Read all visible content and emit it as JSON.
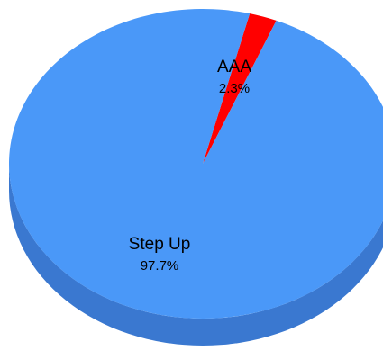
{
  "chart_data": {
    "type": "pie",
    "style": "3d",
    "slices": [
      {
        "label": "AAA",
        "value": 2.3,
        "value_label": "2.3%",
        "color": "#ff0000",
        "side_color": "#b30000"
      },
      {
        "label": "Step Up",
        "value": 97.7,
        "value_label": "97.7%",
        "color": "#4a98f8",
        "side_color": "#3a78d0"
      }
    ]
  }
}
